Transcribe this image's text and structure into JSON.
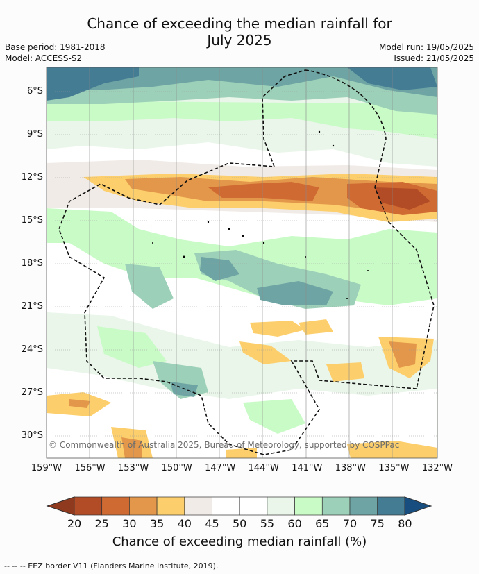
{
  "title_line1": "Chance of exceeding the median rainfall for",
  "title_line2": "July 2025",
  "base_period": "Base period: 1981-2018",
  "model": "Model: ACCESS-S2",
  "model_run": "Model run: 19/05/2025",
  "issued": "Issued: 21/05/2025",
  "lat_labels": [
    "6°S",
    "9°S",
    "12°S",
    "15°S",
    "18°S",
    "21°S",
    "24°S",
    "27°S",
    "30°S"
  ],
  "lon_labels": [
    "159°W",
    "156°W",
    "153°W",
    "150°W",
    "147°W",
    "144°W",
    "141°W",
    "138°W",
    "135°W",
    "132°W"
  ],
  "copyright": "© Commonwealth of Australia 2025, Bureau of Meteorology, supported by COSPPac",
  "colorbar": {
    "ticks": [
      "20",
      "25",
      "30",
      "35",
      "40",
      "45",
      "50",
      "55",
      "60",
      "65",
      "70",
      "75",
      "80"
    ],
    "colors": [
      "#8f3a1e",
      "#b14c26",
      "#cf6a33",
      "#e3974a",
      "#fdcf6c",
      "#f1ebe7",
      "#ffffff",
      "#ffffff",
      "#e9f6e9",
      "#c9fbc7",
      "#9dd0b8",
      "#6ea5a4",
      "#447c94",
      "#184e7f"
    ],
    "label": "Chance of exceeding median rainfall (%)"
  },
  "footer": "--  --  -- EEZ border V11 (Flanders Marine Institute, 2019)."
}
